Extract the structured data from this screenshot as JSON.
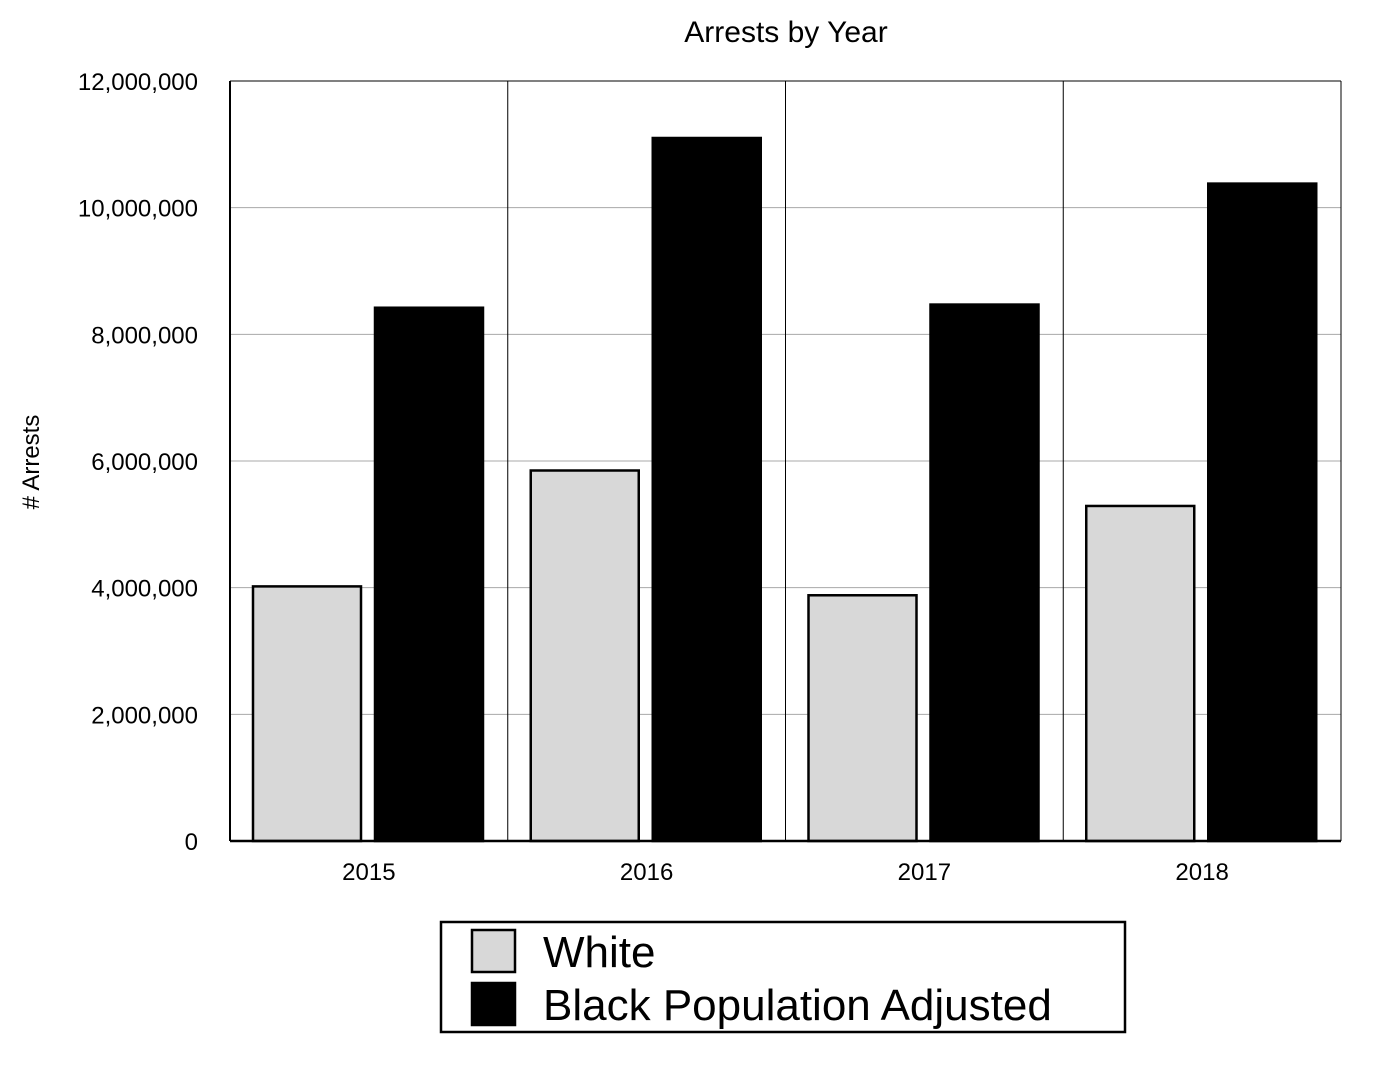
{
  "chart_data": {
    "type": "bar",
    "title": "Arrests by Year",
    "xlabel": "",
    "ylabel": "# Arrests",
    "categories": [
      "2015",
      "2016",
      "2017",
      "2018"
    ],
    "series": [
      {
        "name": "White",
        "color": "#d8d8d8",
        "values": [
          4020000,
          5850000,
          3880000,
          5290000
        ]
      },
      {
        "name": "Black Population Adjusted",
        "color": "#000000",
        "values": [
          8420000,
          11100000,
          8470000,
          10380000
        ]
      }
    ],
    "ylim": [
      0,
      12000000
    ],
    "yticks": [
      0,
      2000000,
      4000000,
      6000000,
      8000000,
      10000000,
      12000000
    ],
    "ytick_labels": [
      "0",
      "2,000,000",
      "4,000,000",
      "6,000,000",
      "8,000,000",
      "10,000,000",
      "12,000,000"
    ],
    "grid": "horizontal",
    "legend_position": "bottom-center"
  }
}
